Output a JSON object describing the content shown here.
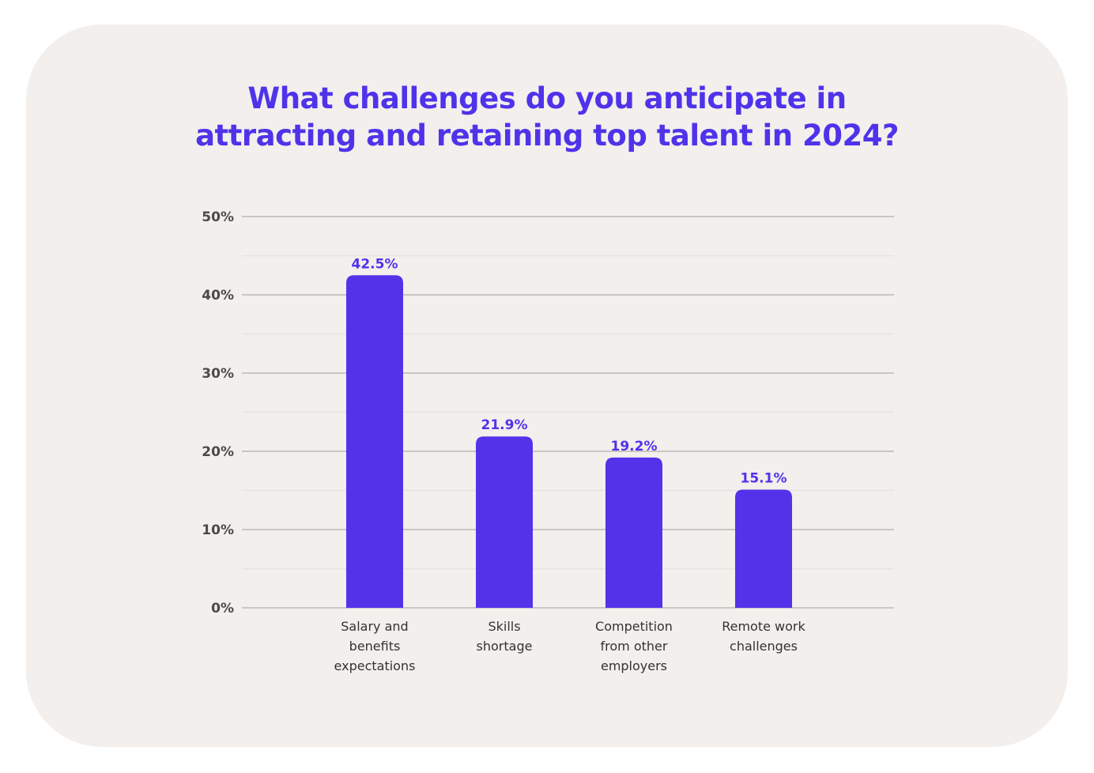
{
  "chart_data": {
    "type": "bar",
    "title": [
      "What challenges do you anticipate in",
      "attracting and retaining top talent in 2024?"
    ],
    "categories": [
      [
        "Salary and",
        "benefits",
        "expectations"
      ],
      [
        "Skills",
        "shortage"
      ],
      [
        "Competition",
        "from other",
        "employers"
      ],
      [
        "Remote work",
        "challenges"
      ]
    ],
    "values": [
      42.5,
      21.9,
      19.2,
      15.1
    ],
    "value_labels": [
      "42.5%",
      "21.9%",
      "19.2%",
      "15.1%"
    ],
    "ylim": [
      0,
      50
    ],
    "yticks": [
      0,
      10,
      20,
      30,
      40,
      50
    ],
    "ytick_labels": [
      "0%",
      "10%",
      "20%",
      "30%",
      "40%",
      "50%"
    ],
    "grid": true,
    "xlabel": "",
    "ylabel": "",
    "colors": {
      "bar": "#5233ea",
      "title": "#4f33ea",
      "value_label": "#4f33ea",
      "grid_major": "#c9c6c3",
      "grid_minor": "#e6e3e0",
      "card": "#f2efec"
    }
  }
}
